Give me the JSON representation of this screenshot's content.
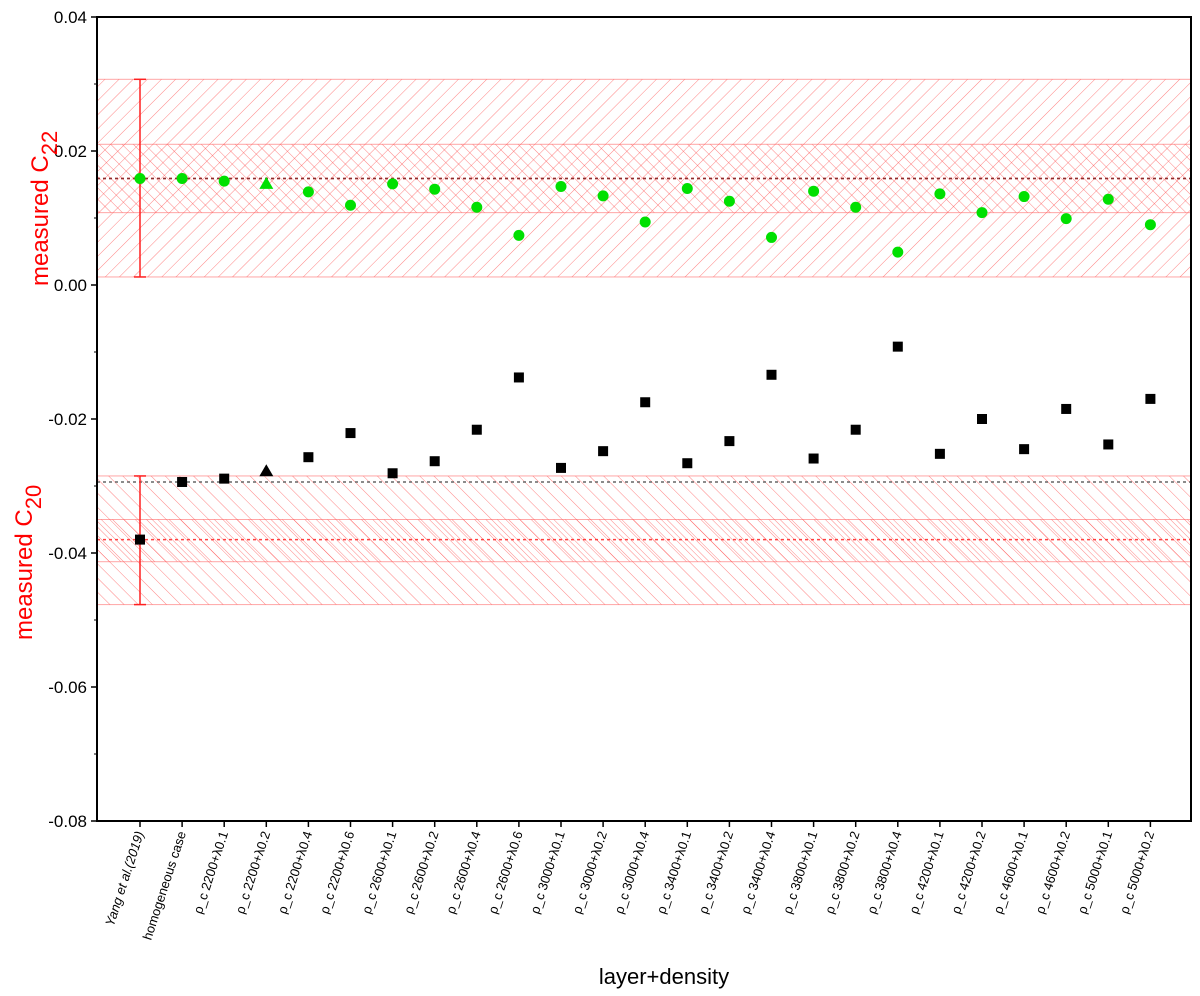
{
  "chart_data": {
    "type": "scatter",
    "title": "",
    "xlabel": "layer+density",
    "ylabels": [
      {
        "text": "measured C",
        "sub": "22"
      },
      {
        "text": "measured C",
        "sub": "20"
      }
    ],
    "ylim": [
      -0.08,
      0.04
    ],
    "yticks": [
      0.04,
      0.02,
      0.0,
      -0.02,
      -0.04,
      -0.06,
      -0.08
    ],
    "ytick_labels": [
      "0.04",
      "0.02",
      "0.00",
      "-0.02",
      "-0.04",
      "-0.06",
      "-0.08"
    ],
    "grid": false,
    "categories": [
      "Yang et al.(2019)",
      "homogeneous case",
      "ρ_c 2200+λ0.1",
      "ρ_c 2200+λ0.2",
      "ρ_c 2200+λ0.4",
      "ρ_c 2200+λ0.6",
      "ρ_c 2600+λ0.1",
      "ρ_c 2600+λ0.2",
      "ρ_c 2600+λ0.4",
      "ρ_c 2600+λ0.6",
      "ρ_c 3000+λ0.1",
      "ρ_c 3000+λ0.2",
      "ρ_c 3000+λ0.4",
      "ρ_c 3400+λ0.1",
      "ρ_c 3400+λ0.2",
      "ρ_c 3400+λ0.4",
      "ρ_c 3800+λ0.1",
      "ρ_c 3800+λ0.2",
      "ρ_c 3800+λ0.4",
      "ρ_c 4200+λ0.1",
      "ρ_c 4200+λ0.2",
      "ρ_c 4600+λ0.1",
      "ρ_c 4600+λ0.2",
      "ρ_c 5000+λ0.1",
      "ρ_c 5000+λ0.2"
    ],
    "series": [
      {
        "color": "#00e000",
        "values": [
          0.0159,
          0.0159,
          0.0155,
          0.0151,
          0.0139,
          0.0119,
          0.0151,
          0.0143,
          0.0116,
          0.0074,
          0.0147,
          0.0133,
          0.0094,
          0.0144,
          0.0125,
          0.0071,
          0.014,
          0.0116,
          0.0049,
          0.0136,
          0.0108,
          0.0132,
          0.0099,
          0.0128,
          0.009
        ],
        "markers": [
          "circle",
          "circle",
          "circle",
          "triangle",
          "circle",
          "circle",
          "circle",
          "circle",
          "circle",
          "circle",
          "circle",
          "circle",
          "circle",
          "circle",
          "circle",
          "circle",
          "circle",
          "circle",
          "circle",
          "circle",
          "circle",
          "circle",
          "circle",
          "circle",
          "circle"
        ]
      },
      {
        "color": "#000000",
        "values": [
          -0.038,
          -0.0294,
          -0.0289,
          -0.0278,
          -0.0257,
          -0.0221,
          -0.0281,
          -0.0263,
          -0.0216,
          -0.0138,
          -0.0273,
          -0.0248,
          -0.0175,
          -0.0266,
          -0.0233,
          -0.0134,
          -0.0259,
          -0.0216,
          -0.0092,
          -0.0252,
          -0.02,
          -0.0245,
          -0.0185,
          -0.0238,
          -0.017
        ],
        "markers": [
          "square",
          "square",
          "square",
          "triangle",
          "square",
          "square",
          "square",
          "square",
          "square",
          "square",
          "square",
          "square",
          "square",
          "square",
          "square",
          "square",
          "square",
          "square",
          "square",
          "square",
          "square",
          "square",
          "square",
          "square",
          "square"
        ]
      }
    ],
    "measurements": [
      {
        "value": 0.0159,
        "error_low": 0.0012,
        "error_high": 0.0307,
        "inner_band": [
          0.0108,
          0.021
        ]
      },
      {
        "value": -0.038,
        "error_low": -0.0477,
        "error_high": -0.0285,
        "inner_band": [
          -0.0413,
          -0.035
        ]
      }
    ],
    "homogeneous_lines": [
      0.0159,
      -0.0294
    ],
    "colors": {
      "band": "#ff4d4d",
      "line": "#8b2f2f"
    }
  }
}
